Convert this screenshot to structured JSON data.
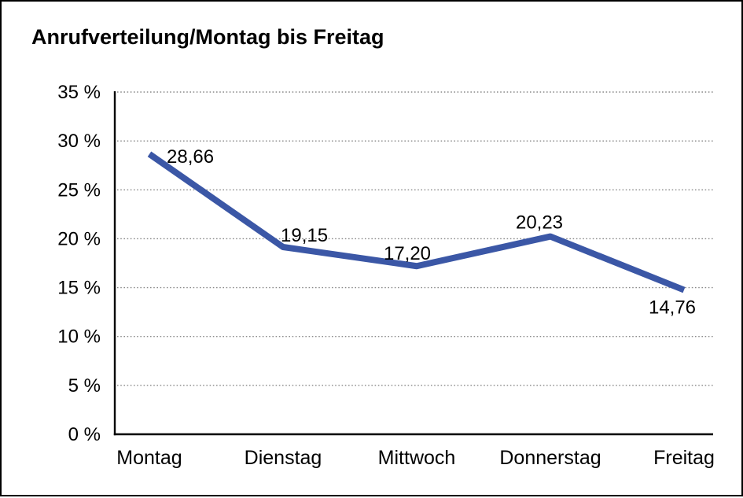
{
  "window": {
    "background_color": "#ffffff",
    "border_color": "#000000"
  },
  "title": "Anrufverteilung/Montag bis Freitag",
  "chart_data": {
    "type": "line",
    "title": "Anrufverteilung/Montag bis Freitag",
    "categories": [
      "Montag",
      "Dienstag",
      "Mittwoch",
      "Donnerstag",
      "Freitag"
    ],
    "values": [
      28.66,
      19.15,
      17.2,
      20.23,
      14.76
    ],
    "data_labels": [
      "28,66",
      "19,15",
      "17,20",
      "20,23",
      "14,76"
    ],
    "xlabel": "",
    "ylabel": "",
    "ylim": [
      0,
      35
    ],
    "ytick_interval": 5,
    "ytick_labels": [
      "0 %",
      "5 %",
      "10 %",
      "15 %",
      "20 %",
      "25 %",
      "30 %",
      "35 %"
    ],
    "grid": "horizontal-dotted",
    "legend": "none",
    "line_color": "#3B57A6",
    "axis_color": "#000000",
    "grid_color": "#8A8A8A",
    "label_color": "#000000"
  }
}
